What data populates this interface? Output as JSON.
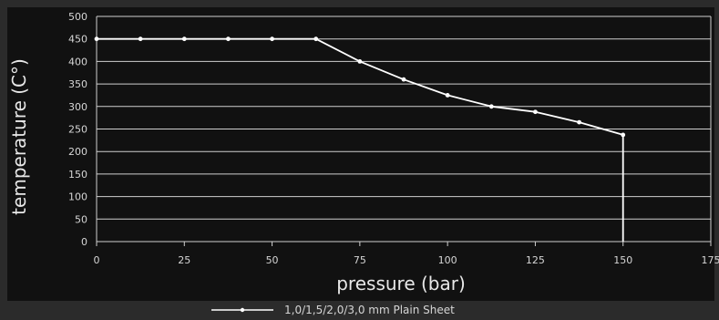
{
  "chart_data": {
    "type": "line",
    "title": "",
    "xlabel": "pressure (bar)",
    "ylabel": "temperature (C°)",
    "xlim": [
      0,
      175
    ],
    "ylim": [
      0,
      500
    ],
    "x_ticks": [
      0,
      25,
      50,
      75,
      100,
      125,
      150,
      175
    ],
    "y_ticks": [
      0,
      50,
      100,
      150,
      200,
      250,
      300,
      350,
      400,
      450,
      500
    ],
    "grid": true,
    "legend_position": "bottom-center",
    "series": [
      {
        "name": "1,0/1,5/2,0/3,0 mm Plain Sheet",
        "color": "#ffffff",
        "x": [
          0,
          12.5,
          25,
          37.5,
          50,
          62.5,
          75,
          87.5,
          100,
          112.5,
          125,
          137.5,
          150,
          150
        ],
        "y": [
          450,
          450,
          450,
          450,
          450,
          450,
          400,
          360,
          325,
          300,
          288,
          265,
          237,
          0
        ]
      }
    ]
  }
}
